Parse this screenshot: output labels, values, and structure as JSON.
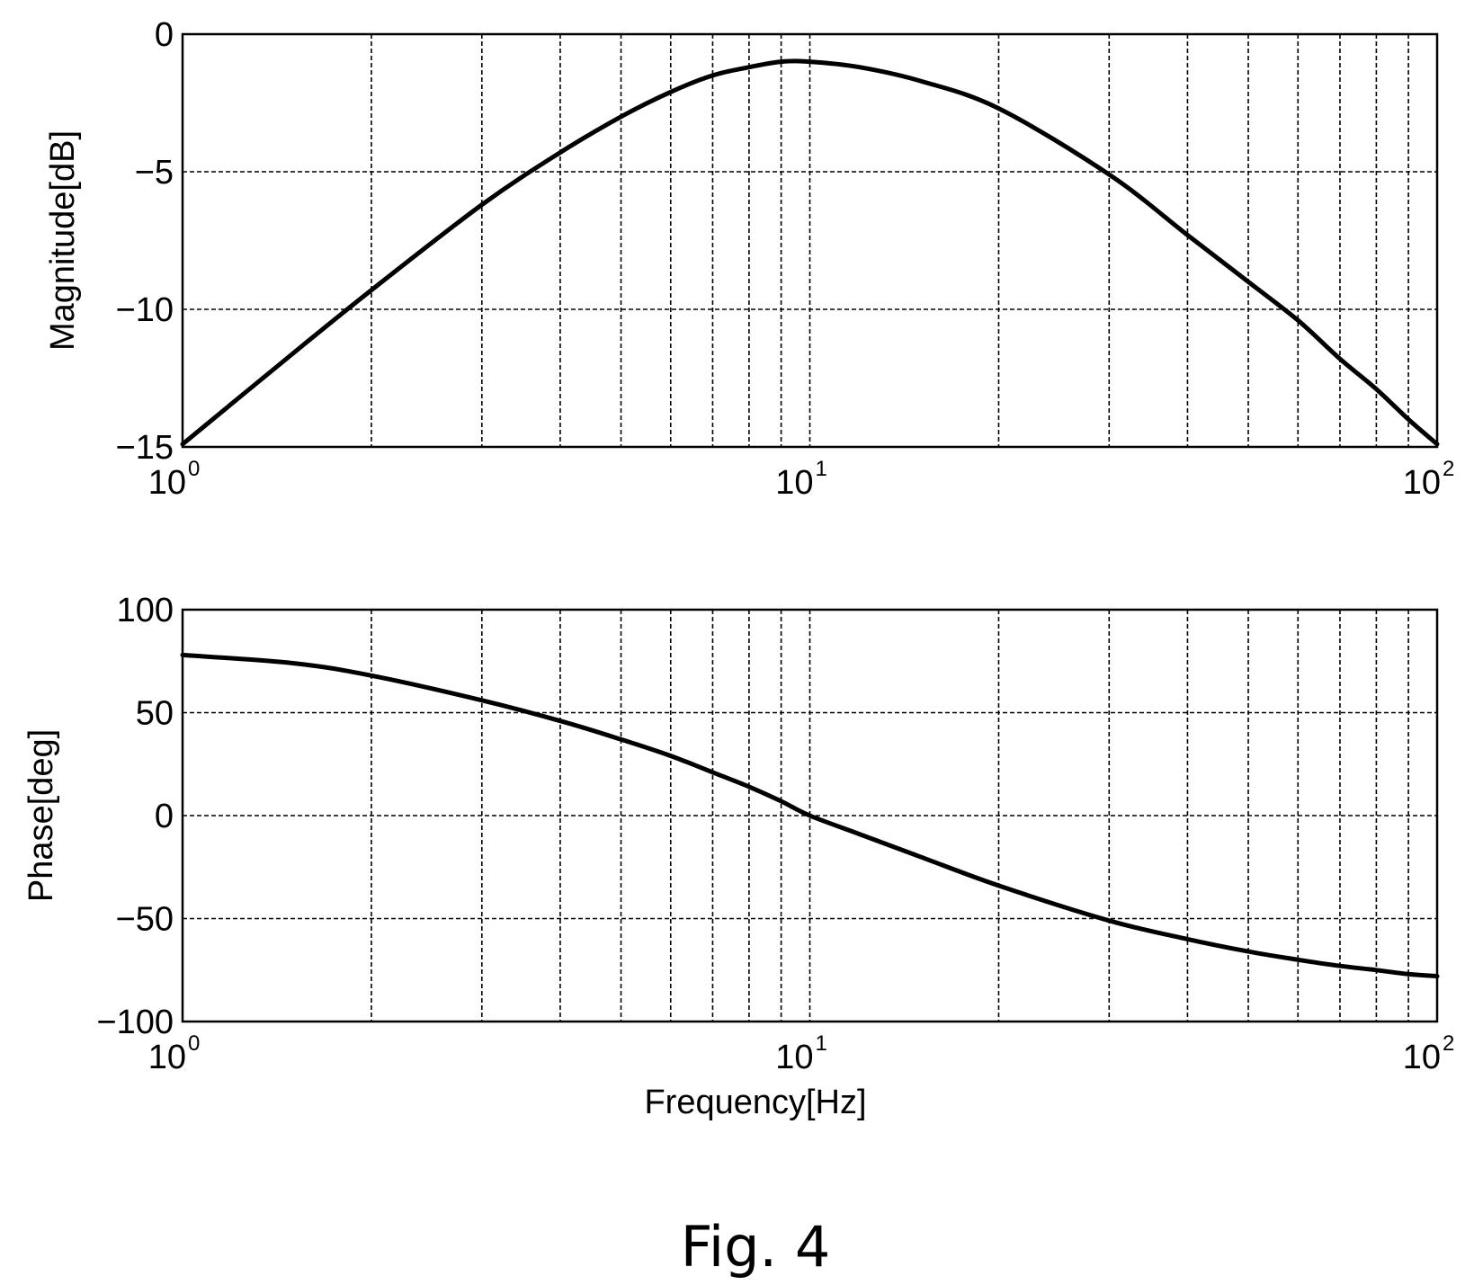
{
  "caption": "Fig. 4",
  "chart_data": [
    {
      "type": "line",
      "xscale": "log",
      "xlim": [
        1,
        100
      ],
      "ylim": [
        -15,
        0
      ],
      "ylabel": "Magnitude[dB]",
      "xlabel": "",
      "grid": true,
      "x_ticks": [
        {
          "base": "10",
          "exp": "0"
        },
        {
          "base": "10",
          "exp": "1"
        },
        {
          "base": "10",
          "exp": "2"
        }
      ],
      "y_ticks": [
        "0",
        "−5",
        "−10",
        "−15"
      ],
      "y_tick_values": [
        0,
        -5,
        -10,
        -15
      ],
      "series": [
        {
          "x": [
            1,
            1.5,
            2,
            3,
            4,
            5,
            6,
            7,
            8,
            9,
            10,
            12,
            15,
            20,
            30,
            40,
            50,
            60,
            70,
            80,
            90,
            100
          ],
          "y": [
            -14.9,
            -11.6,
            -9.3,
            -6.2,
            -4.3,
            -3.0,
            -2.1,
            -1.5,
            -1.2,
            -1.0,
            -1.0,
            -1.2,
            -1.7,
            -2.7,
            -5.1,
            -7.3,
            -9.0,
            -10.4,
            -11.8,
            -12.9,
            -14.0,
            -14.9
          ]
        }
      ]
    },
    {
      "type": "line",
      "xscale": "log",
      "xlim": [
        1,
        100
      ],
      "ylim": [
        -100,
        100
      ],
      "ylabel": "Phase[deg]",
      "xlabel": "Frequency[Hz]",
      "grid": true,
      "x_ticks": [
        {
          "base": "10",
          "exp": "0"
        },
        {
          "base": "10",
          "exp": "1"
        },
        {
          "base": "10",
          "exp": "2"
        }
      ],
      "y_ticks": [
        "100",
        "50",
        "0",
        "−50",
        "−100"
      ],
      "y_tick_values": [
        100,
        50,
        0,
        -50,
        -100
      ],
      "series": [
        {
          "x": [
            1,
            1.5,
            2,
            3,
            4,
            5,
            6,
            7,
            8,
            9,
            10,
            12,
            15,
            20,
            30,
            40,
            50,
            60,
            70,
            80,
            90,
            100
          ],
          "y": [
            78,
            74,
            68,
            56,
            46,
            37,
            29,
            21,
            14,
            7,
            0,
            -9,
            -20,
            -34,
            -51,
            -60,
            -66,
            -70,
            -73,
            -75,
            -77,
            -78
          ]
        }
      ]
    }
  ]
}
